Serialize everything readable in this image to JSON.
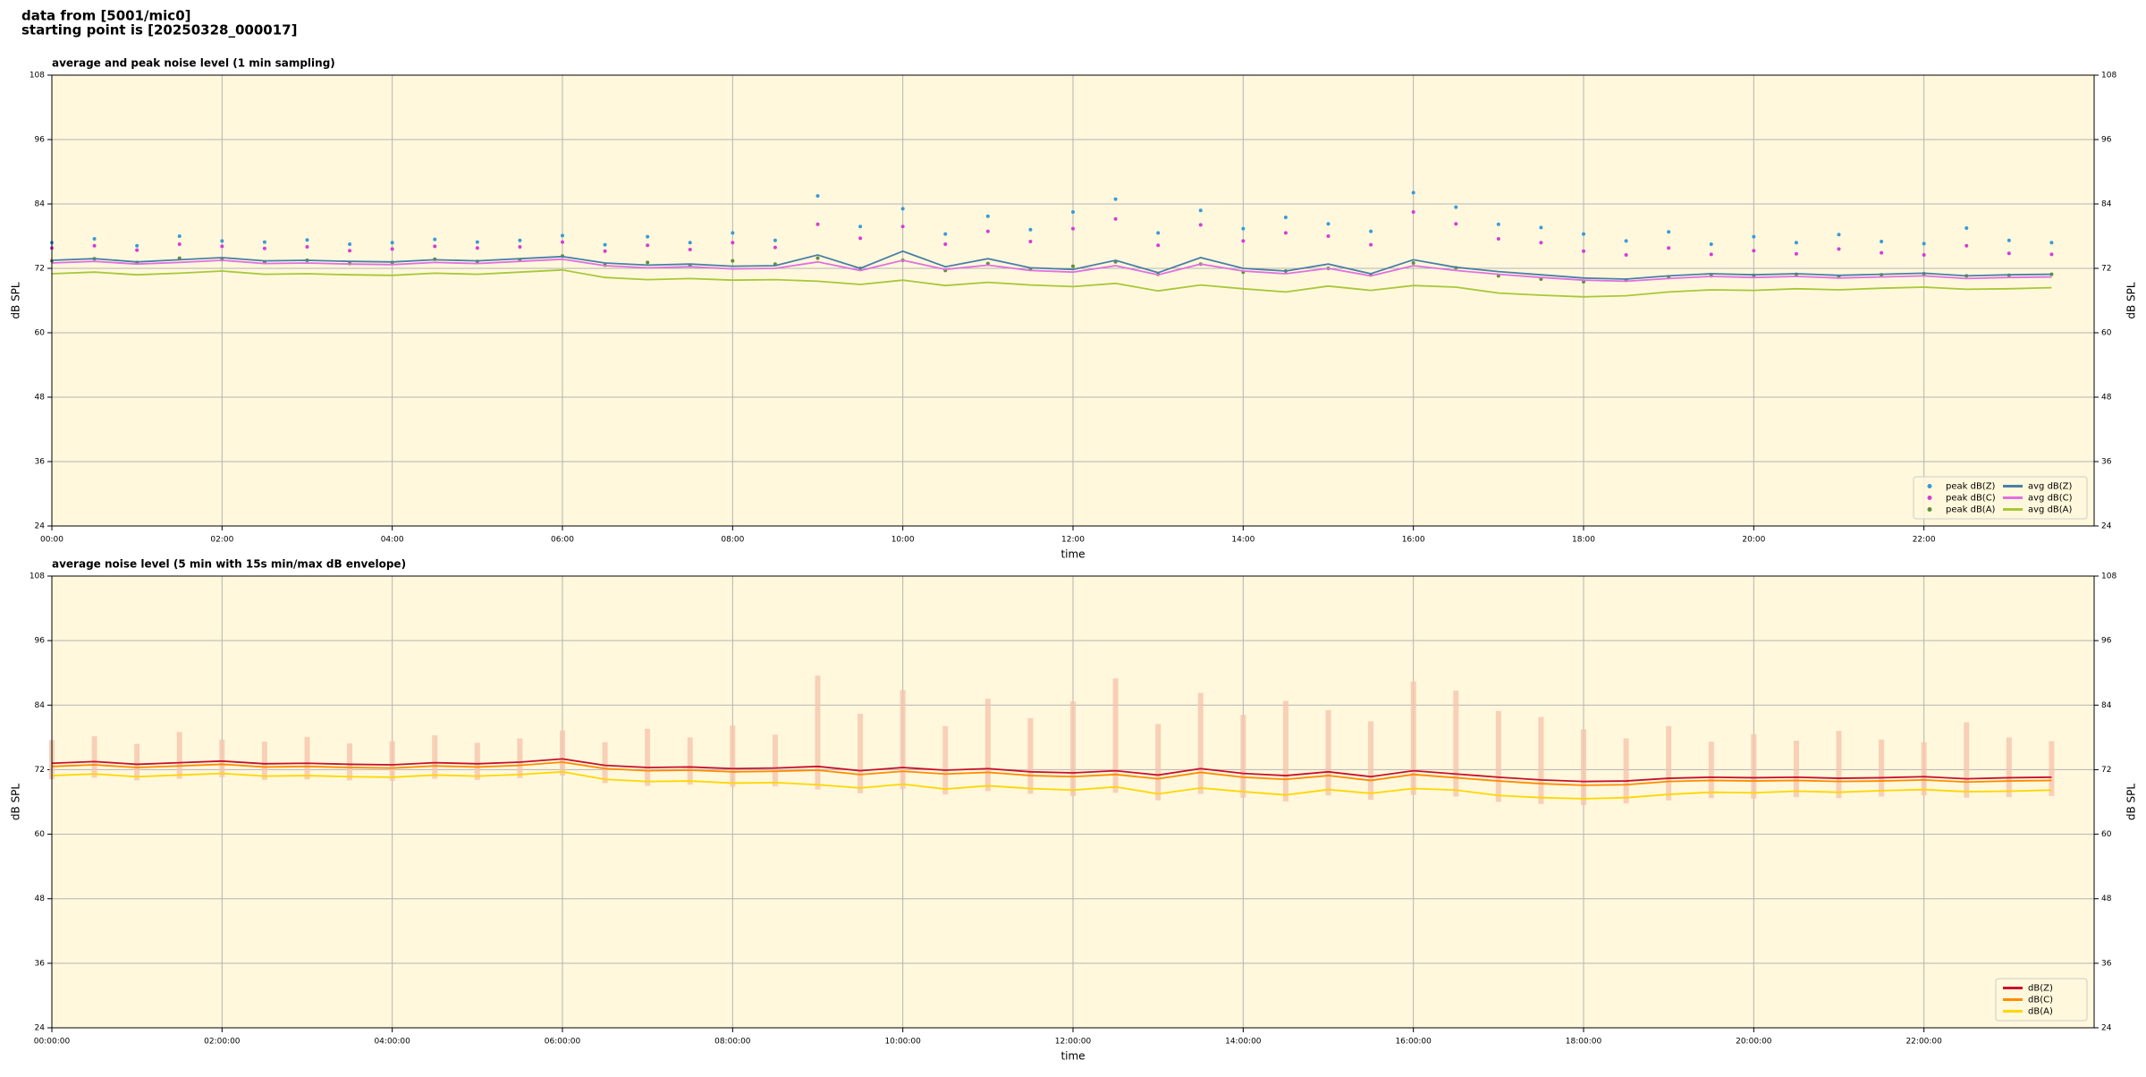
{
  "header": [
    "data from [5001/mic0]",
    "starting point is [20250328_000017]"
  ],
  "chart_data": [
    {
      "type": "line",
      "title": "average and peak noise level (1 min sampling)",
      "xlabel": "time",
      "ylabel": "dB SPL",
      "x": [
        0,
        0.5,
        1,
        1.5,
        2,
        2.5,
        3,
        3.5,
        4,
        4.5,
        5,
        5.5,
        6,
        6.5,
        7,
        7.5,
        8,
        8.5,
        9,
        9.5,
        10,
        10.5,
        11,
        11.5,
        12,
        12.5,
        13,
        13.5,
        14,
        14.5,
        15,
        15.5,
        16,
        16.5,
        17,
        17.5,
        18,
        18.5,
        19,
        19.5,
        20,
        20.5,
        21,
        21.5,
        22,
        22.5,
        23,
        23.5
      ],
      "xlim": [
        0,
        24
      ],
      "xticks": [
        {
          "value": 0,
          "label": "00:00"
        },
        {
          "value": 2,
          "label": "02:00"
        },
        {
          "value": 4,
          "label": "04:00"
        },
        {
          "value": 6,
          "label": "06:00"
        },
        {
          "value": 8,
          "label": "08:00"
        },
        {
          "value": 10,
          "label": "10:00"
        },
        {
          "value": 12,
          "label": "12:00"
        },
        {
          "value": 14,
          "label": "14:00"
        },
        {
          "value": 16,
          "label": "16:00"
        },
        {
          "value": 18,
          "label": "18:00"
        },
        {
          "value": 20,
          "label": "20:00"
        },
        {
          "value": 22,
          "label": "22:00"
        }
      ],
      "ylim": [
        24,
        108
      ],
      "yticks": [
        24,
        36,
        48,
        60,
        72,
        84,
        96,
        108
      ],
      "grid": true,
      "legend": "lower right",
      "legend_columns": 2,
      "background": "#fff8dc",
      "series": [
        {
          "name": "peak dB(Z)",
          "style": "points",
          "color": "#3a9ad9",
          "values": [
            76.8,
            77.5,
            76.2,
            78.0,
            77.1,
            76.9,
            77.3,
            76.5,
            76.8,
            77.4,
            76.9,
            77.2,
            78.1,
            76.4,
            77.9,
            76.8,
            78.6,
            77.2,
            85.5,
            79.8,
            83.1,
            78.4,
            81.7,
            79.2,
            82.5,
            84.9,
            78.6,
            82.8,
            79.4,
            81.5,
            80.3,
            78.9,
            86.1,
            83.4,
            80.2,
            79.6,
            78.4,
            77.1,
            78.8,
            76.5,
            77.9,
            76.8,
            78.3,
            77.0,
            76.6,
            79.5,
            77.2,
            76.8
          ]
        },
        {
          "name": "peak dB(C)",
          "style": "points",
          "color": "#d63cd6",
          "values": [
            75.8,
            76.2,
            75.4,
            76.5,
            76.1,
            75.7,
            76.0,
            75.3,
            75.6,
            76.1,
            75.8,
            76.0,
            76.9,
            75.2,
            76.3,
            75.5,
            76.8,
            75.9,
            80.2,
            77.6,
            79.8,
            76.5,
            78.9,
            77.0,
            79.4,
            81.2,
            76.3,
            80.1,
            77.1,
            78.6,
            78.0,
            76.4,
            82.5,
            80.3,
            77.5,
            76.8,
            75.2,
            74.5,
            75.8,
            74.6,
            75.3,
            74.7,
            75.6,
            74.9,
            74.5,
            76.2,
            74.8,
            74.6
          ]
        },
        {
          "name": "peak dB(A)",
          "style": "points",
          "color": "#5f8f3a",
          "values": [
            73.4,
            73.8,
            73.1,
            73.9,
            73.6,
            73.2,
            73.5,
            72.9,
            73.1,
            73.7,
            73.3,
            73.6,
            74.3,
            72.6,
            73.1,
            72.5,
            73.4,
            72.8,
            73.9,
            72.0,
            73.5,
            71.6,
            72.9,
            71.8,
            72.4,
            73.2,
            70.9,
            72.8,
            71.3,
            71.5,
            72.0,
            70.8,
            73.0,
            72.1,
            70.6,
            70.0,
            69.5,
            69.8,
            70.4,
            70.6,
            70.7,
            70.9,
            70.5,
            70.8,
            71.0,
            70.6,
            70.7,
            70.9
          ]
        },
        {
          "name": "avg dB(Z)",
          "style": "line",
          "color": "#4a7fa8",
          "values": [
            73.5,
            73.8,
            73.2,
            73.6,
            74.0,
            73.4,
            73.5,
            73.3,
            73.2,
            73.6,
            73.4,
            73.8,
            74.2,
            73.0,
            72.6,
            72.8,
            72.4,
            72.5,
            74.5,
            72.0,
            75.2,
            72.3,
            73.8,
            72.1,
            71.8,
            73.5,
            71.2,
            74.0,
            72.0,
            71.5,
            72.8,
            71.0,
            73.6,
            72.2,
            71.4,
            70.8,
            70.2,
            70.0,
            70.6,
            71.0,
            70.8,
            71.0,
            70.7,
            70.9,
            71.1,
            70.6,
            70.8,
            70.9
          ]
        },
        {
          "name": "avg dB(C)",
          "style": "line",
          "color": "#e070e0",
          "values": [
            73.0,
            73.3,
            72.8,
            73.1,
            73.5,
            72.9,
            73.0,
            72.8,
            72.7,
            73.1,
            72.9,
            73.3,
            73.7,
            72.5,
            72.1,
            72.3,
            71.9,
            72.0,
            73.2,
            71.6,
            73.5,
            71.8,
            72.6,
            71.6,
            71.3,
            72.5,
            70.8,
            72.8,
            71.5,
            71.0,
            72.0,
            70.6,
            72.5,
            71.6,
            70.9,
            70.3,
            69.8,
            69.6,
            70.1,
            70.5,
            70.3,
            70.5,
            70.2,
            70.4,
            70.6,
            70.1,
            70.3,
            70.4
          ]
        },
        {
          "name": "avg dB(A)",
          "style": "line",
          "color": "#a8c838",
          "values": [
            71.0,
            71.3,
            70.8,
            71.1,
            71.5,
            70.9,
            71.0,
            70.8,
            70.7,
            71.1,
            70.9,
            71.3,
            71.7,
            70.3,
            69.9,
            70.1,
            69.8,
            69.9,
            69.6,
            69.0,
            69.8,
            68.8,
            69.4,
            68.9,
            68.6,
            69.2,
            67.8,
            68.9,
            68.2,
            67.6,
            68.7,
            67.9,
            68.8,
            68.5,
            67.4,
            67.0,
            66.7,
            66.9,
            67.6,
            68.0,
            67.9,
            68.2,
            68.0,
            68.3,
            68.5,
            68.1,
            68.2,
            68.4
          ]
        }
      ]
    },
    {
      "type": "line",
      "title": "average noise level (5 min with 15s min/max dB envelope)",
      "xlabel": "time",
      "ylabel": "dB SPL",
      "x": [
        0,
        0.5,
        1,
        1.5,
        2,
        2.5,
        3,
        3.5,
        4,
        4.5,
        5,
        5.5,
        6,
        6.5,
        7,
        7.5,
        8,
        8.5,
        9,
        9.5,
        10,
        10.5,
        11,
        11.5,
        12,
        12.5,
        13,
        13.5,
        14,
        14.5,
        15,
        15.5,
        16,
        16.5,
        17,
        17.5,
        18,
        18.5,
        19,
        19.5,
        20,
        20.5,
        21,
        21.5,
        22,
        22.5,
        23,
        23.5
      ],
      "xlim": [
        0,
        24
      ],
      "xticks": [
        {
          "value": 0,
          "label": "00:00:00"
        },
        {
          "value": 2,
          "label": "02:00:00"
        },
        {
          "value": 4,
          "label": "04:00:00"
        },
        {
          "value": 6,
          "label": "06:00:00"
        },
        {
          "value": 8,
          "label": "08:00:00"
        },
        {
          "value": 10,
          "label": "10:00:00"
        },
        {
          "value": 12,
          "label": "12:00:00"
        },
        {
          "value": 14,
          "label": "14:00:00"
        },
        {
          "value": 16,
          "label": "16:00:00"
        },
        {
          "value": 18,
          "label": "18:00:00"
        },
        {
          "value": 20,
          "label": "20:00:00"
        },
        {
          "value": 22,
          "label": "22:00:00"
        }
      ],
      "ylim": [
        24,
        108
      ],
      "yticks": [
        24,
        36,
        48,
        60,
        72,
        84,
        96,
        108
      ],
      "grid": true,
      "legend": "lower right",
      "legend_columns": 1,
      "background": "#fff8dc",
      "envelope": {
        "color": "#f6c4ae",
        "upper": [
          77.5,
          78.2,
          76.8,
          79.0,
          77.6,
          77.2,
          78.1,
          76.9,
          77.3,
          78.4,
          77.0,
          77.8,
          79.3,
          77.1,
          79.6,
          78.0,
          80.2,
          78.5,
          89.5,
          82.4,
          86.8,
          80.1,
          85.2,
          81.6,
          84.7,
          89.0,
          80.5,
          86.3,
          82.2,
          84.8,
          83.1,
          81.0,
          88.4,
          86.7,
          82.9,
          81.8,
          79.5,
          77.8,
          80.1,
          77.2,
          78.6,
          77.4,
          79.2,
          77.6,
          77.1,
          80.8,
          78.0,
          77.3
        ],
        "lower": [
          70.2,
          70.5,
          70.0,
          70.3,
          70.6,
          70.1,
          70.2,
          70.0,
          69.9,
          70.3,
          70.1,
          70.4,
          70.9,
          69.5,
          69.0,
          69.2,
          68.8,
          68.9,
          68.3,
          67.6,
          68.4,
          67.4,
          68.0,
          67.5,
          67.1,
          67.7,
          66.3,
          67.5,
          66.8,
          66.1,
          67.2,
          66.4,
          67.3,
          67.0,
          66.0,
          65.6,
          65.4,
          65.7,
          66.3,
          66.7,
          66.6,
          66.9,
          66.7,
          67.0,
          67.2,
          66.8,
          66.9,
          67.1
        ]
      },
      "series": [
        {
          "name": "dB(Z)",
          "style": "line",
          "color": "#c8102e",
          "values": [
            73.2,
            73.5,
            73.0,
            73.3,
            73.6,
            73.1,
            73.2,
            73.0,
            72.9,
            73.3,
            73.1,
            73.4,
            74.0,
            72.8,
            72.4,
            72.5,
            72.2,
            72.3,
            72.6,
            71.8,
            72.4,
            71.9,
            72.2,
            71.6,
            71.4,
            71.8,
            71.0,
            72.2,
            71.3,
            70.9,
            71.6,
            70.7,
            71.8,
            71.2,
            70.6,
            70.1,
            69.8,
            69.9,
            70.4,
            70.6,
            70.5,
            70.6,
            70.4,
            70.5,
            70.7,
            70.3,
            70.5,
            70.6
          ]
        },
        {
          "name": "dB(C)",
          "style": "line",
          "color": "#ff8c00",
          "values": [
            72.6,
            72.9,
            72.4,
            72.7,
            73.0,
            72.5,
            72.6,
            72.4,
            72.3,
            72.7,
            72.5,
            72.8,
            73.4,
            72.2,
            71.8,
            71.9,
            71.6,
            71.7,
            71.9,
            71.1,
            71.7,
            71.2,
            71.5,
            70.9,
            70.7,
            71.1,
            70.3,
            71.5,
            70.6,
            70.2,
            70.9,
            70.0,
            71.1,
            70.5,
            69.9,
            69.4,
            69.1,
            69.2,
            69.8,
            70.0,
            69.9,
            70.0,
            69.8,
            69.9,
            70.1,
            69.7,
            69.9,
            70.0
          ]
        },
        {
          "name": "dB(A)",
          "style": "line",
          "color": "#ffd700",
          "values": [
            70.9,
            71.2,
            70.7,
            71.0,
            71.3,
            70.8,
            70.9,
            70.7,
            70.6,
            71.0,
            70.8,
            71.1,
            71.6,
            70.2,
            69.8,
            69.9,
            69.5,
            69.6,
            69.2,
            68.6,
            69.3,
            68.4,
            69.0,
            68.5,
            68.2,
            68.8,
            67.5,
            68.6,
            67.9,
            67.3,
            68.3,
            67.6,
            68.5,
            68.2,
            67.2,
            66.8,
            66.6,
            66.8,
            67.4,
            67.8,
            67.7,
            68.0,
            67.8,
            68.1,
            68.3,
            67.9,
            68.0,
            68.2
          ]
        }
      ]
    }
  ]
}
